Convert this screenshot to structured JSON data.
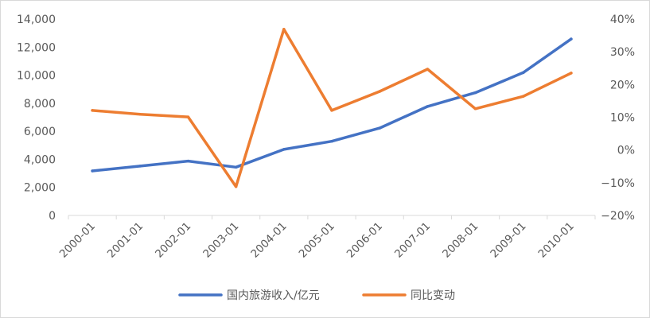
{
  "chart_data": {
    "type": "line",
    "categories": [
      "2000-01",
      "2001-01",
      "2002-01",
      "2003-01",
      "2004-01",
      "2005-01",
      "2006-01",
      "2007-01",
      "2008-01",
      "2009-01",
      "2010-01"
    ],
    "y_left": {
      "min": 0,
      "max": 14000,
      "ticks": [
        0,
        2000,
        4000,
        6000,
        8000,
        10000,
        12000,
        14000
      ],
      "tick_labels": [
        "0",
        "2,000",
        "4,000",
        "6,000",
        "8,000",
        "10,000",
        "12,000",
        "14,000"
      ]
    },
    "y_right": {
      "min": -20,
      "max": 40,
      "ticks": [
        -20,
        -10,
        0,
        10,
        20,
        30,
        40
      ],
      "tick_labels": [
        "−20%",
        "−10%",
        "0%",
        "10%",
        "20%",
        "30%",
        "40%"
      ]
    },
    "series": [
      {
        "name": "国内旅游收入/亿元",
        "axis": "left",
        "color": "#4472C4",
        "values": [
          3175,
          3522,
          3878,
          3442,
          4711,
          5286,
          6230,
          7771,
          8749,
          10184,
          12580
        ]
      },
      {
        "name": "同比变动",
        "axis": "right",
        "color": "#ED7D31",
        "values": [
          12.1,
          10.9,
          10.1,
          -11.2,
          36.9,
          12.1,
          17.9,
          24.7,
          12.6,
          16.4,
          23.5
        ]
      }
    ],
    "grid": false,
    "legend_position": "bottom"
  }
}
